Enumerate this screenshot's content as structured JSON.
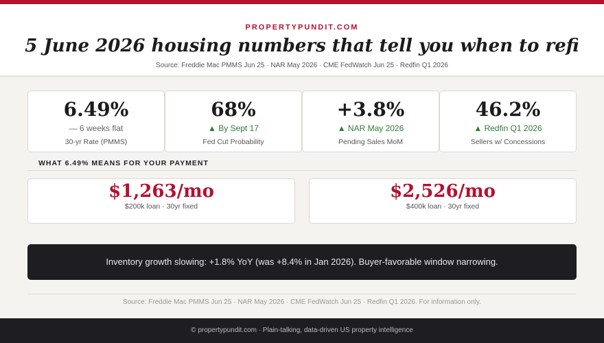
{
  "header": {
    "brand": "PROPERTYPUNDIT.COM",
    "title": "5 June 2026 housing numbers that tell you when to refi",
    "source": "Source: Freddie Mac PMMS Jun 25 · NAR May 2026 · CME FedWatch Jun 25 · Redfin Q1 2026"
  },
  "stats": [
    {
      "value": "6.49%",
      "change": "— 6 weeks flat",
      "label": "30-yr Rate (PMMS)",
      "trend": "flat"
    },
    {
      "value": "68%",
      "change": "▲ By Sept 17",
      "label": "Fed Cut Probability",
      "trend": "up"
    },
    {
      "value": "+3.8%",
      "change": "▲ NAR May 2026",
      "label": "Pending Sales MoM",
      "trend": "up"
    },
    {
      "value": "46.2%",
      "change": "▲ Redfin Q1 2026",
      "label": "Sellers w/ Concessions",
      "trend": "up"
    }
  ],
  "payment_section": {
    "heading": "WHAT 6.49% MEANS FOR YOUR PAYMENT",
    "cards": [
      {
        "value": "$1,263/mo",
        "label": "$200k loan · 30yr fixed"
      },
      {
        "value": "$2,526/mo",
        "label": "$400k loan · 30yr fixed"
      }
    ]
  },
  "banner": "Inventory growth slowing: +1.8% YoY (was +8.4% in Jan 2026). Buyer-favorable window narrowing.",
  "footer_source": "Source: Freddie Mac PMMS Jun 25 · NAR May 2026 · CME FedWatch Jun 25 · Redfin Q1 2026. For information only.",
  "footer": "© propertypundit.com · Plain-talking, data-driven US property intelligence"
}
